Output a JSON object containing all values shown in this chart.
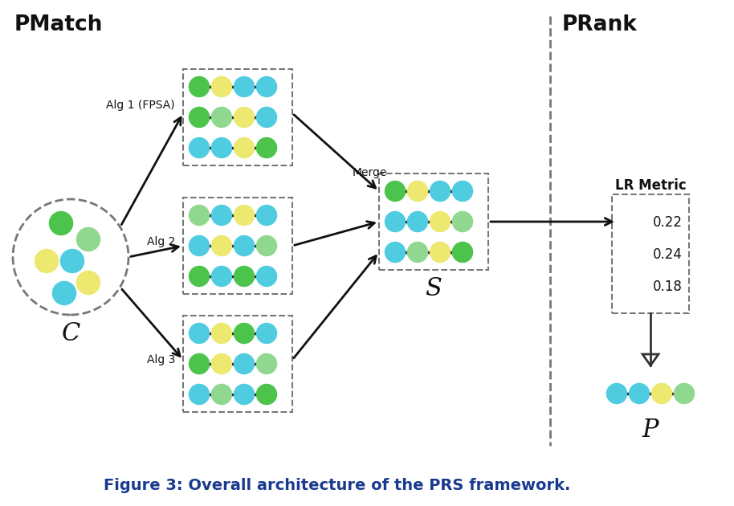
{
  "title": "Figure 3: Overall architecture of the PRS framework.",
  "pmatch_label": "PMatch",
  "prank_label": "PRank",
  "lr_metric_label": "LR Metric",
  "lr_values": [
    "0.22",
    "0.24",
    "0.18"
  ],
  "C_label": "C",
  "S_label": "S",
  "P_label": "P",
  "alg_labels": [
    "Alg 1 (FPSA)",
    "Alg 2",
    "Alg 3"
  ],
  "merge_label": "Merge",
  "bg_color": "#ffffff",
  "col_green": "#4cc44c",
  "col_lgreen": "#90d890",
  "col_cyan": "#50cce0",
  "col_yellow": "#ece870",
  "col_gray": "#888888",
  "dashed_color": "#777777",
  "arrow_color": "#111111",
  "caption_color": "#1a3a8f"
}
